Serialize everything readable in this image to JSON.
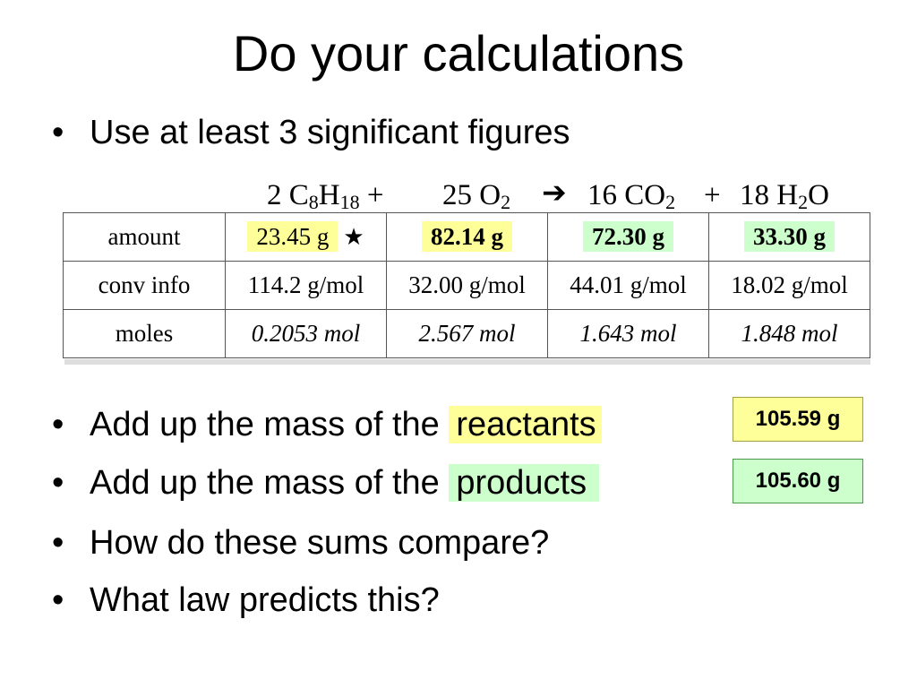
{
  "title": "Do your calculations",
  "bullets": [
    {
      "text": "Use at least 3 significant figures"
    },
    {
      "prefix": "Add up the mass of the ",
      "highlight": "reactants"
    },
    {
      "prefix": "Add up the mass of the ",
      "highlight": "products"
    },
    {
      "text": "How do these sums compare?"
    },
    {
      "text": "What law predicts this?"
    }
  ],
  "bullet_char": "•",
  "equation": {
    "t1_coef": "2 C",
    "t1_s1": "8",
    "t1_mid": "H",
    "t1_s2": "18",
    "plus1": "+",
    "t2_coef": "25 O",
    "t2_s": "2",
    "arrow": "➔",
    "t3_coef": "16 CO",
    "t3_s": "2",
    "plus2": "+",
    "t4_coef": "18 H",
    "t4_s": "2",
    "t4_end": "O"
  },
  "table": {
    "rows": [
      {
        "label": "amount",
        "cells": [
          "23.45 g",
          "82.14 g",
          "72.30 g",
          "33.30 g"
        ]
      },
      {
        "label": "conv info",
        "cells": [
          "114.2 g/mol",
          "32.00 g/mol",
          "44.01 g/mol",
          "18.02 g/mol"
        ]
      },
      {
        "label": "moles",
        "cells": [
          "0.2053 mol",
          "2.567 mol",
          "1.643 mol",
          "1.848 mol"
        ]
      }
    ],
    "star": "★"
  },
  "sums": {
    "reactants": "105.59 g",
    "products": "105.60 g"
  },
  "colors": {
    "reactant_highlight": "#ffff99",
    "product_highlight": "#ccffcc"
  }
}
